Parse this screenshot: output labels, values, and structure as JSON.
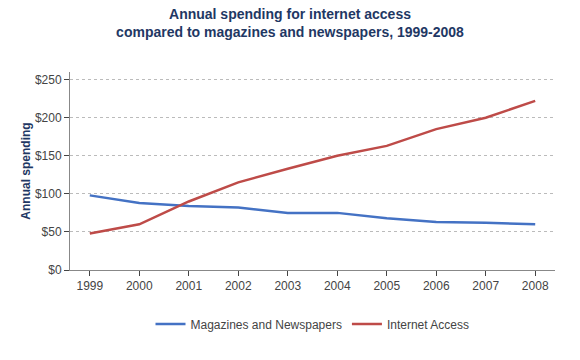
{
  "chart_data": {
    "type": "line",
    "title": "Annual spending for internet access",
    "subtitle": "compared to magazines and newspapers, 1999-2008",
    "ylabel": "Annual spending",
    "x": [
      1999,
      2000,
      2001,
      2002,
      2003,
      2004,
      2005,
      2006,
      2007,
      2008
    ],
    "series": [
      {
        "name": "Magazines and Newspapers",
        "color": "#4472C4",
        "values": [
          98,
          88,
          84,
          82,
          75,
          75,
          68,
          63,
          62,
          60
        ]
      },
      {
        "name": "Internet Access",
        "color": "#BE4B48",
        "values": [
          48,
          60,
          90,
          115,
          133,
          150,
          163,
          185,
          200,
          222
        ]
      }
    ],
    "xlim": [
      1998.6,
      2008.4
    ],
    "xticks": [
      1999,
      2000,
      2001,
      2002,
      2003,
      2004,
      2005,
      2006,
      2007,
      2008
    ],
    "ylim": [
      0,
      260
    ],
    "yticks": [
      {
        "value": 0,
        "label": "$0"
      },
      {
        "value": 50,
        "label": "$50"
      },
      {
        "value": 100,
        "label": "$100"
      },
      {
        "value": 150,
        "label": "$150"
      },
      {
        "value": 200,
        "label": "$200"
      },
      {
        "value": 250,
        "label": "$250"
      }
    ],
    "grid": true,
    "legend": "bottom"
  }
}
